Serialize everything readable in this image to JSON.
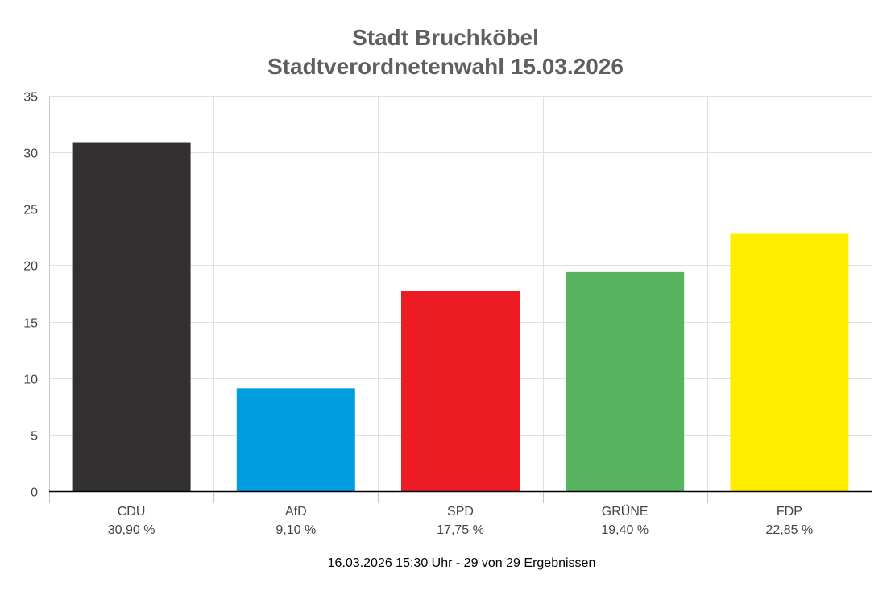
{
  "chart_data": {
    "type": "bar",
    "title_lines": [
      "Stadt Bruchköbel",
      "Stadtverordnetenwahl 15.03.2026"
    ],
    "categories": [
      "CDU",
      "AfD",
      "SPD",
      "GRÜNE",
      "FDP"
    ],
    "values": [
      30.9,
      9.1,
      17.75,
      19.4,
      22.85
    ],
    "value_labels": [
      "30,90 %",
      "9,10 %",
      "17,75 %",
      "19,40 %",
      "22,85 %"
    ],
    "colors": [
      "#323031",
      "#009ee0",
      "#ed1c24",
      "#57b360",
      "#ffed00"
    ],
    "ylim": [
      0,
      35
    ],
    "yticks": [
      0,
      5,
      10,
      15,
      20,
      25,
      30,
      35
    ],
    "grid": true,
    "xlabel": "",
    "ylabel": ""
  },
  "footer": "16.03.2026 15:30 Uhr - 29 von 29 Ergebnissen"
}
